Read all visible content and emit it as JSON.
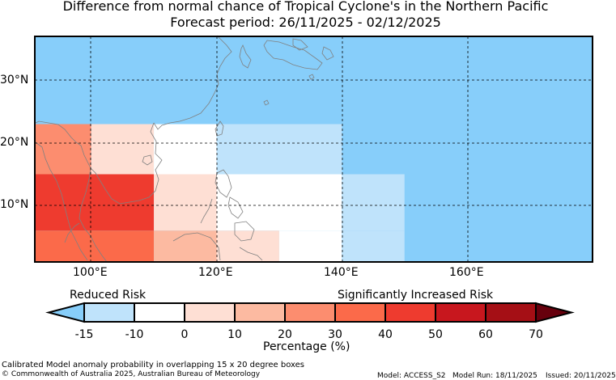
{
  "title": {
    "line1": "Difference from normal chance of Tropical Cyclone's in the Northern Pacific",
    "line2": "Forecast period: 26/11/2025 - 02/12/2025"
  },
  "map": {
    "lat_labels": [
      "30°N",
      "20°N",
      "10°N"
    ],
    "lon_labels": [
      "100°E",
      "120°E",
      "140°E",
      "160°E"
    ],
    "cells": [
      {
        "lon": [
          91,
          100
        ],
        "lat": [
          15,
          23
        ],
        "color": "#fc8d6f",
        "bin": "30 to 40"
      },
      {
        "lon": [
          100,
          110
        ],
        "lat": [
          15,
          23
        ],
        "color": "#fedfd4",
        "bin": "0 to 10"
      },
      {
        "lon": [
          110,
          120
        ],
        "lat": [
          15,
          23
        ],
        "color": "#ffffff",
        "bin": "-10 to 0"
      },
      {
        "lon": [
          120,
          140
        ],
        "lat": [
          15,
          23
        ],
        "color": "#bfe3fb",
        "bin": "-15 to -10"
      },
      {
        "lon": [
          91,
          110
        ],
        "lat": [
          6,
          15
        ],
        "color": "#ee3b2f",
        "bin": "50 to 60"
      },
      {
        "lon": [
          110,
          120
        ],
        "lat": [
          6,
          15
        ],
        "color": "#fedfd4",
        "bin": "0 to 10"
      },
      {
        "lon": [
          120,
          140
        ],
        "lat": [
          6,
          15
        ],
        "color": "#ffffff",
        "bin": "-10 to 0"
      },
      {
        "lon": [
          140,
          150
        ],
        "lat": [
          6,
          15
        ],
        "color": "#bfe3fb",
        "bin": "-15 to -10"
      },
      {
        "lon": [
          91,
          110
        ],
        "lat": [
          0,
          6
        ],
        "color": "#fb6a4a",
        "bin": "40 to 50"
      },
      {
        "lon": [
          110,
          120
        ],
        "lat": [
          0,
          6
        ],
        "color": "#fcbaa1",
        "bin": "10 to 20"
      },
      {
        "lon": [
          120,
          130
        ],
        "lat": [
          0,
          6
        ],
        "color": "#fedfd4",
        "bin": "0 to 10"
      },
      {
        "lon": [
          130,
          140
        ],
        "lat": [
          0,
          6
        ],
        "color": "#ffffff",
        "bin": "-10 to 0"
      },
      {
        "lon": [
          140,
          150
        ],
        "lat": [
          0,
          6
        ],
        "color": "#bfe3fb",
        "bin": "-15 to -10"
      }
    ],
    "background_color": "#87cefa"
  },
  "colorbar": {
    "left_label": "Reduced Risk",
    "right_label": "Significantly Increased Risk",
    "ticks": [
      "-15",
      "-10",
      "0",
      "10",
      "20",
      "30",
      "40",
      "50",
      "60",
      "70"
    ],
    "colors": [
      "#87cefa",
      "#bfe3fb",
      "#ffffff",
      "#fedfd4",
      "#fcbaa1",
      "#fc8d6f",
      "#fb6a4a",
      "#ee3b2f",
      "#c8171e",
      "#a50f15",
      "#67000d"
    ],
    "unit_label": "Percentage (%)"
  },
  "footer": {
    "description": "Calibrated Model anomaly probability in overlapping 15 x 20 degree boxes",
    "copyright": "© Commonwealth of Australia 2025, Australian Bureau of Meteorology",
    "model": "Model: ACCESS_S2",
    "model_run": "Model Run: 18/11/2025",
    "issued": "Issued: 20/11/2025"
  }
}
